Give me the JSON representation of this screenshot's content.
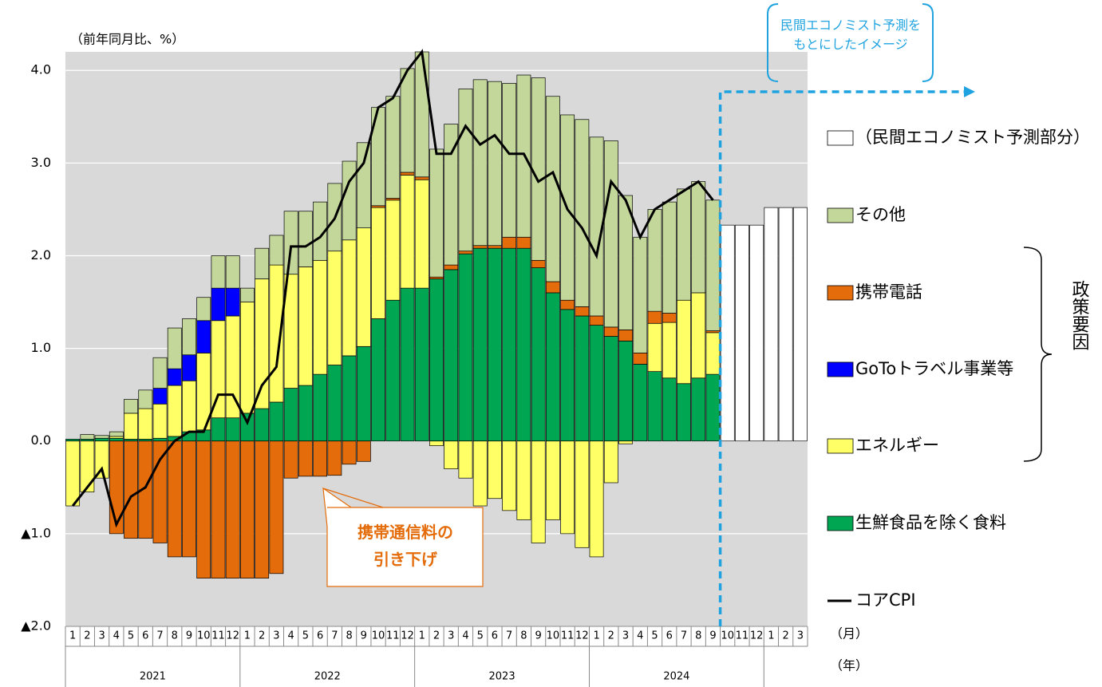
{
  "chart_data": {
    "type": "bar",
    "y_axis_label": "（前年同月比、%）",
    "categories": [
      "1",
      "2",
      "3",
      "4",
      "5",
      "6",
      "7",
      "8",
      "9",
      "10",
      "11",
      "12",
      "1",
      "2",
      "3",
      "4",
      "5",
      "6",
      "7",
      "8",
      "9",
      "10",
      "11",
      "12",
      "1",
      "2",
      "3",
      "4",
      "5",
      "6",
      "7",
      "8",
      "9",
      "10",
      "11",
      "12",
      "1",
      "2",
      "3",
      "4",
      "5",
      "6",
      "7",
      "8",
      "9",
      "10",
      "11",
      "12",
      "1",
      "2",
      "3"
    ],
    "years": [
      "2021",
      "2022",
      "2023",
      "2024"
    ],
    "month_unit": "（月）",
    "year_unit": "（年）",
    "ylim": [
      -2.0,
      4.2
    ],
    "yticks": [
      {
        "value": 4,
        "label": "4.0"
      },
      {
        "value": 3,
        "label": "3.0"
      },
      {
        "value": 2,
        "label": "2.0"
      },
      {
        "value": 1,
        "label": "1.0"
      },
      {
        "value": 0,
        "label": "0.0"
      },
      {
        "value": -1,
        "label": "▲1.0"
      },
      {
        "value": -2,
        "label": "▲2.0"
      }
    ],
    "grid": true,
    "series": [
      {
        "name": "生鮮食品を除く食料",
        "color": "#00a651",
        "values": [
          0.02,
          0.02,
          0.03,
          0.03,
          0.02,
          0.02,
          0.03,
          0.05,
          0.1,
          0.12,
          0.25,
          0.25,
          0.3,
          0.35,
          0.42,
          0.57,
          0.6,
          0.72,
          0.82,
          0.92,
          1.02,
          1.32,
          1.52,
          1.65,
          1.65,
          1.75,
          1.85,
          2.02,
          2.08,
          2.08,
          2.08,
          2.08,
          1.87,
          1.6,
          1.42,
          1.35,
          1.25,
          1.13,
          1.08,
          0.83,
          0.75,
          0.68,
          0.62,
          0.68,
          0.72,
          null,
          null,
          null,
          null,
          null,
          null
        ]
      },
      {
        "name": "エネルギー",
        "color": "#ffff66",
        "values": [
          -0.7,
          -0.55,
          -0.4,
          0.02,
          0.28,
          0.33,
          0.37,
          0.55,
          0.55,
          0.83,
          1.05,
          1.1,
          1.2,
          1.4,
          1.48,
          1.23,
          1.28,
          1.23,
          1.23,
          1.25,
          1.28,
          1.2,
          1.08,
          1.22,
          1.17,
          -0.05,
          -0.3,
          -0.4,
          -0.7,
          -0.62,
          -0.75,
          -0.85,
          -1.1,
          -0.85,
          -1.0,
          -1.15,
          -1.25,
          -0.45,
          -0.03,
          null,
          0.52,
          0.6,
          0.9,
          0.92,
          0.45,
          null,
          null,
          null,
          null,
          null,
          null
        ]
      },
      {
        "name": "GoToトラベル事業等",
        "color": "#0000ff",
        "values": [
          null,
          null,
          null,
          null,
          null,
          null,
          0.17,
          0.18,
          0.28,
          0.35,
          0.35,
          0.3,
          null,
          null,
          null,
          null,
          null,
          null,
          null,
          null,
          null,
          null,
          null,
          null,
          null,
          null,
          null,
          null,
          null,
          null,
          null,
          null,
          null,
          null,
          null,
          null,
          null,
          null,
          null,
          null,
          null,
          null,
          null,
          null,
          null,
          null,
          null,
          null,
          null,
          null,
          null
        ]
      },
      {
        "name": "携帯電話",
        "color": "#e46c0a",
        "values": [
          null,
          null,
          null,
          -1.0,
          -1.05,
          -1.05,
          -1.1,
          -1.25,
          -1.25,
          -1.48,
          -1.48,
          -1.48,
          -1.48,
          -1.48,
          -1.43,
          -0.4,
          -0.38,
          -0.38,
          -0.37,
          -0.25,
          -0.22,
          0.02,
          0.02,
          0.03,
          0.03,
          0.02,
          0.05,
          0.03,
          0.03,
          0.03,
          0.12,
          0.12,
          0.08,
          0.12,
          0.1,
          0.1,
          0.1,
          0.1,
          0.12,
          0.12,
          0.13,
          0.1,
          null,
          null,
          0.02,
          null,
          null,
          null,
          null,
          null,
          null
        ]
      },
      {
        "name": "その他",
        "color": "#c4d79b",
        "values": [
          null,
          0.05,
          0.03,
          0.05,
          0.15,
          0.2,
          0.33,
          0.44,
          0.39,
          0.25,
          0.35,
          0.35,
          0.15,
          0.33,
          0.32,
          0.68,
          0.6,
          0.63,
          0.73,
          0.85,
          0.92,
          1.06,
          1.1,
          1.12,
          1.35,
          1.38,
          1.52,
          1.75,
          1.79,
          1.77,
          1.66,
          1.75,
          1.97,
          2.0,
          2.0,
          2.02,
          1.93,
          2.01,
          1.45,
          1.25,
          1.1,
          1.2,
          1.2,
          1.2,
          1.41,
          null,
          null,
          null,
          null,
          null,
          null
        ]
      },
      {
        "name": "（民間エコノミスト予測部分）",
        "color": "#ffffff",
        "forecast": true,
        "values": [
          null,
          null,
          null,
          null,
          null,
          null,
          null,
          null,
          null,
          null,
          null,
          null,
          null,
          null,
          null,
          null,
          null,
          null,
          null,
          null,
          null,
          null,
          null,
          null,
          null,
          null,
          null,
          null,
          null,
          null,
          null,
          null,
          null,
          null,
          null,
          null,
          null,
          null,
          null,
          null,
          null,
          null,
          null,
          null,
          null,
          2.33,
          2.33,
          2.33,
          2.52,
          2.52,
          2.52
        ]
      },
      {
        "name": "コアCPI",
        "color": "#000000",
        "line": true,
        "values": [
          -0.7,
          -0.5,
          -0.3,
          -0.9,
          -0.6,
          -0.5,
          -0.2,
          0.0,
          0.1,
          0.1,
          0.5,
          0.5,
          0.2,
          0.6,
          0.8,
          2.1,
          2.1,
          2.2,
          2.4,
          2.8,
          3.0,
          3.6,
          3.7,
          4.0,
          4.2,
          3.1,
          3.1,
          3.4,
          3.2,
          3.3,
          3.1,
          3.1,
          2.8,
          2.9,
          2.5,
          2.3,
          2.0,
          2.8,
          2.6,
          2.2,
          2.5,
          2.6,
          2.7,
          2.8,
          2.6,
          null,
          null,
          null,
          null,
          null,
          null
        ]
      }
    ],
    "legend_order": [
      5,
      4,
      3,
      2,
      1,
      0,
      6
    ],
    "policy_label": "政策要因",
    "forecast_note": "民間エコノミスト予測を\nもとにしたイメージ",
    "mobile_note": "携帯通信料の\n引き下げ"
  }
}
